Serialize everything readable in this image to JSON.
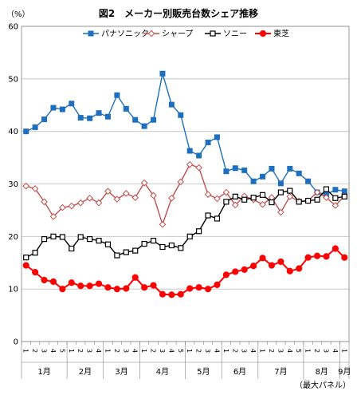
{
  "chart_data": {
    "type": "line",
    "title": "図2　メーカー別販売台数シェア推移",
    "ylabel": "（%）",
    "xlabel": "（最大パネル）",
    "ylim": [
      0,
      60
    ],
    "yticks": [
      0,
      10,
      20,
      30,
      40,
      50,
      60
    ],
    "grid": true,
    "legend_position": "top",
    "months": [
      {
        "label": "1月",
        "count": 5
      },
      {
        "label": "2月",
        "count": 4
      },
      {
        "label": "3月",
        "count": 4
      },
      {
        "label": "4月",
        "count": 5
      },
      {
        "label": "5月",
        "count": 4
      },
      {
        "label": "6月",
        "count": 4
      },
      {
        "label": "7月",
        "count": 5
      },
      {
        "label": "8月",
        "count": 4
      },
      {
        "label": "9月",
        "count": 1
      }
    ],
    "categories": [
      "1",
      "2",
      "3",
      "4",
      "5",
      "1",
      "2",
      "3",
      "4",
      "1",
      "2",
      "3",
      "4",
      "1",
      "2",
      "3",
      "4",
      "5",
      "1",
      "2",
      "3",
      "4",
      "1",
      "2",
      "3",
      "4",
      "1",
      "2",
      "3",
      "4",
      "5",
      "1",
      "2",
      "3",
      "4",
      "1"
    ],
    "series": [
      {
        "name": "パナソニック",
        "color": "#1f6fbf",
        "marker": "square-filled",
        "values": [
          40.0,
          40.8,
          42.3,
          44.5,
          44.2,
          45.3,
          42.6,
          42.5,
          43.5,
          42.8,
          46.9,
          44.3,
          42.2,
          41.0,
          42.2,
          51.0,
          45.1,
          43.1,
          36.3,
          35.4,
          37.9,
          38.9,
          32.4,
          33.0,
          32.6,
          30.5,
          31.4,
          32.9,
          30.1,
          32.9,
          32.0,
          30.5,
          28.4,
          28.0,
          28.9,
          28.6
        ]
      },
      {
        "name": "シャープ",
        "color": "#c0504d",
        "marker": "diamond-open",
        "values": [
          29.6,
          29.1,
          26.6,
          23.8,
          25.5,
          25.8,
          26.4,
          27.3,
          26.4,
          28.6,
          27.1,
          28.2,
          27.4,
          30.2,
          27.8,
          22.3,
          27.3,
          30.4,
          33.7,
          33.1,
          28.0,
          27.2,
          28.4,
          26.0,
          27.7,
          27.0,
          26.1,
          27.4,
          24.6,
          27.6,
          26.7,
          26.8,
          28.4,
          27.4,
          25.9,
          27.7
        ]
      },
      {
        "name": "ソニー",
        "color": "#000000",
        "marker": "square-open",
        "values": [
          16.0,
          16.9,
          19.5,
          20.0,
          19.9,
          17.7,
          19.9,
          19.5,
          19.2,
          18.5,
          16.4,
          17.0,
          17.3,
          18.6,
          19.2,
          18.0,
          18.3,
          17.8,
          20.0,
          21.0,
          24.0,
          23.4,
          26.6,
          27.6,
          27.0,
          27.4,
          27.9,
          26.5,
          28.4,
          28.7,
          26.6,
          26.8,
          27.0,
          29.0,
          27.3,
          27.6
        ]
      },
      {
        "name": "東芝",
        "color": "#ff0000",
        "marker": "circle-filled",
        "values": [
          14.5,
          13.2,
          11.7,
          11.4,
          10.0,
          11.2,
          10.6,
          10.6,
          11.0,
          10.3,
          10.0,
          10.1,
          12.2,
          10.3,
          10.7,
          9.0,
          8.9,
          9.0,
          10.1,
          10.3,
          10.0,
          10.8,
          12.7,
          13.3,
          13.7,
          14.4,
          15.9,
          14.5,
          15.2,
          13.4,
          13.9,
          16.0,
          16.3,
          16.2,
          17.7,
          16.0
        ]
      }
    ]
  }
}
